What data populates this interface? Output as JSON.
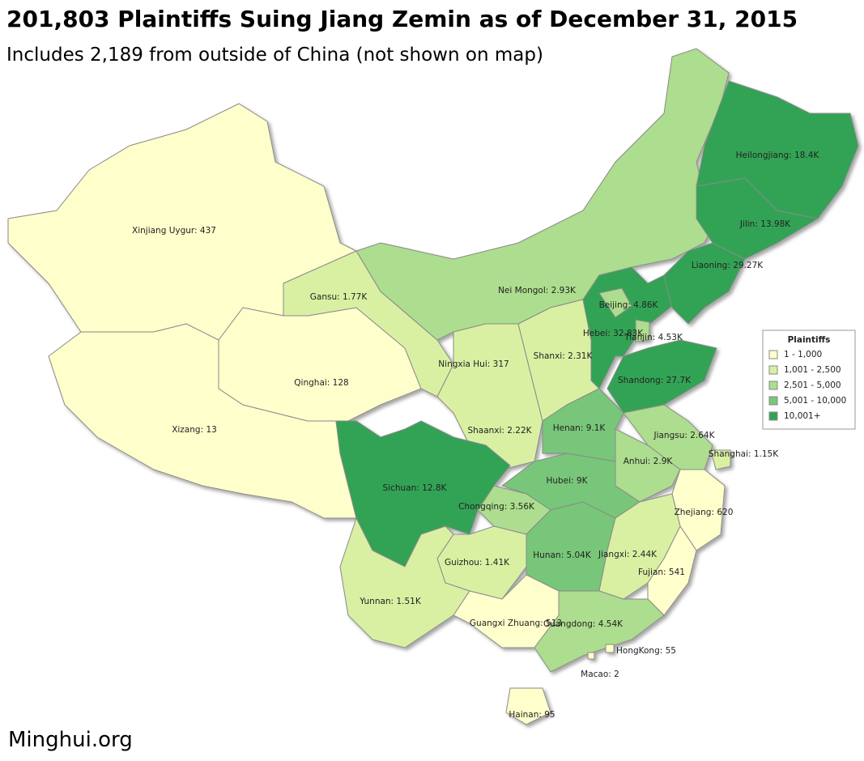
{
  "header": {
    "title": "201,803 Plaintiffs Suing Jiang Zemin as of December 31, 2015",
    "subtitle": "Includes 2,189 from outside of China (not shown on map)"
  },
  "legend": {
    "title": "Plaintiffs",
    "items": [
      {
        "label": "1 - 1,000",
        "color": "#ffffcc"
      },
      {
        "label": "1,001 - 2,500",
        "color": "#d9f0a3"
      },
      {
        "label": "2,501 - 5,000",
        "color": "#addd8e"
      },
      {
        "label": "5,001 - 10,000",
        "color": "#78c679"
      },
      {
        "label": "10,001+",
        "color": "#31a354"
      }
    ]
  },
  "regions": [
    {
      "label": "Xinjiang Uygur: 437",
      "color": "#ffffcc"
    },
    {
      "label": "Xizang: 13",
      "color": "#ffffcc"
    },
    {
      "label": "Qinghai: 128",
      "color": "#ffffcc"
    },
    {
      "label": "Gansu: 1.77K",
      "color": "#d9f0a3"
    },
    {
      "label": "Nei Mongol: 2.93K",
      "color": "#addd8e"
    },
    {
      "label": "Ningxia Hui: 317",
      "color": "#ffffcc"
    },
    {
      "label": "Shaanxi: 2.22K",
      "color": "#d9f0a3"
    },
    {
      "label": "Shanxi: 2.31K",
      "color": "#d9f0a3"
    },
    {
      "label": "Hebei: 32.83K",
      "color": "#31a354"
    },
    {
      "label": "Beijing: 4.86K",
      "color": "#addd8e"
    },
    {
      "label": "Tianjin: 4.53K",
      "color": "#addd8e"
    },
    {
      "label": "Liaoning: 29.27K",
      "color": "#31a354"
    },
    {
      "label": "Jilin: 13.98K",
      "color": "#31a354"
    },
    {
      "label": "Heilongjiang: 18.4K",
      "color": "#31a354"
    },
    {
      "label": "Shandong: 27.7K",
      "color": "#31a354"
    },
    {
      "label": "Henan: 9.1K",
      "color": "#78c679"
    },
    {
      "label": "Jiangsu: 2.64K",
      "color": "#addd8e"
    },
    {
      "label": "Anhui: 2.9K",
      "color": "#addd8e"
    },
    {
      "label": "Shanghai: 1.15K",
      "color": "#d9f0a3"
    },
    {
      "label": "Zhejiang: 620",
      "color": "#ffffcc"
    },
    {
      "label": "Hubei: 9K",
      "color": "#78c679"
    },
    {
      "label": "Chongqing: 3.56K",
      "color": "#addd8e"
    },
    {
      "label": "Sichuan: 12.8K",
      "color": "#31a354"
    },
    {
      "label": "Guizhou: 1.41K",
      "color": "#d9f0a3"
    },
    {
      "label": "Yunnan: 1.51K",
      "color": "#d9f0a3"
    },
    {
      "label": "Hunan: 5.04K",
      "color": "#78c679"
    },
    {
      "label": "Jiangxi: 2.44K",
      "color": "#d9f0a3"
    },
    {
      "label": "Fujian: 541",
      "color": "#ffffcc"
    },
    {
      "label": "Guangxi Zhuang: 513",
      "color": "#ffffcc"
    },
    {
      "label": "Guangdong: 4.54K",
      "color": "#addd8e"
    },
    {
      "label": "Hainan: 95",
      "color": "#ffffcc"
    },
    {
      "label": "HongKong: 55",
      "color": "#ffffcc"
    },
    {
      "label": "Macao: 2",
      "color": "#ffffcc"
    }
  ],
  "footer": {
    "source": "Minghui.org"
  }
}
